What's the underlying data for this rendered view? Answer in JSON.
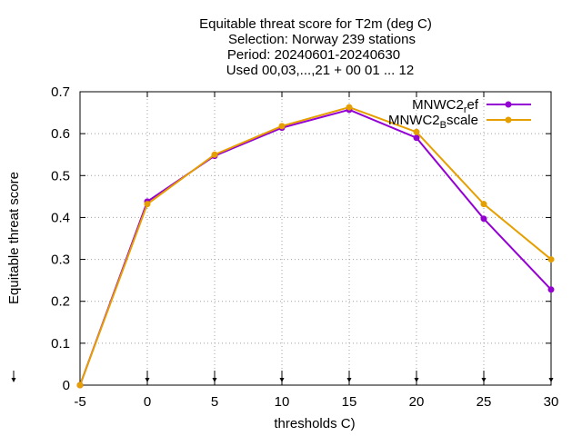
{
  "chart_data": {
    "type": "line",
    "title": [
      "Equitable threat score  for T2m (deg C)",
      "Selection: Norway    239 stations",
      "Period: 20240601-20240630",
      "Used 00,03,...,21 + 00 01 ... 12"
    ],
    "xlabel": "thresholds C)",
    "ylabel": "Equitable threat score",
    "x": [
      -5,
      0,
      5,
      10,
      15,
      20,
      25,
      30
    ],
    "xlim": [
      -5,
      30
    ],
    "ylim": [
      0,
      0.7
    ],
    "xticks": [
      -5,
      0,
      5,
      10,
      15,
      20,
      25,
      30
    ],
    "xtick_labels": [
      "-5",
      "0",
      "5",
      "10",
      "15",
      "20",
      "25",
      "30"
    ],
    "yticks": [
      0,
      0.1,
      0.2,
      0.3,
      0.4,
      0.5,
      0.6,
      0.7
    ],
    "ytick_labels": [
      "0",
      "0.1",
      "0.2",
      "0.3",
      "0.4",
      "0.5",
      "0.6",
      "0.7"
    ],
    "grid": true,
    "legend_position": "top-right",
    "series": [
      {
        "name_base": "MNWC2",
        "name_sub": "r",
        "name_rest": "ef",
        "color": "#9400d3",
        "values": [
          0.0,
          0.438,
          0.547,
          0.614,
          0.657,
          0.59,
          0.397,
          0.228
        ]
      },
      {
        "name_base": "MNWC2",
        "name_sub": "B",
        "name_rest": "scale",
        "color": "#e69f00",
        "values": [
          0.0,
          0.432,
          0.55,
          0.618,
          0.663,
          0.604,
          0.432,
          0.3
        ]
      }
    ]
  }
}
